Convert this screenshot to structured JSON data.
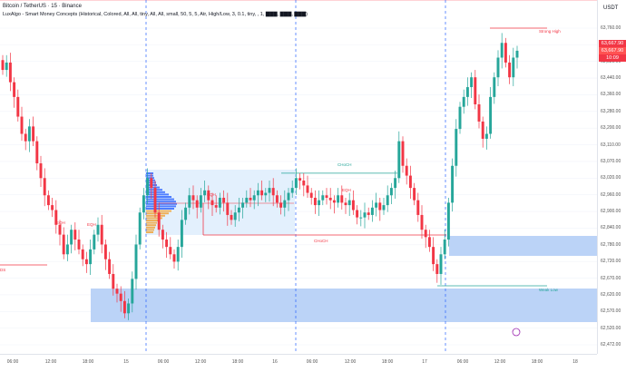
{
  "header": {
    "symbol_title": "Bitcoin / TetherUS · 15 · Binance",
    "indicator": "LuxAlgo - Smart Money Concepts (Historical, Colored, All, All, tiny, All, All, small, 50, 5, 5, Atr, High/Low, 3, 0.1, tiny, , 1, ▇▇▇, ▇▇▇, ▇▇▇)"
  },
  "price_axis": {
    "currency": "USDT",
    "labels": [
      "63,760.00",
      "63,600.00",
      "63,520.00",
      "63,440.00",
      "63,360.00",
      "63,280.00",
      "63,200.00",
      "63,110.00",
      "63,070.00",
      "63,020.00",
      "62,960.00",
      "62,900.00",
      "62,840.00",
      "62,780.00",
      "62,720.00",
      "62,670.00",
      "62,620.00",
      "62,570.00",
      "62,520.00",
      "62,472.00"
    ],
    "current_price": "63,667.90",
    "prev_price": "63,667.90",
    "countdown": "10:09",
    "current_color": "#f23645"
  },
  "time_axis": {
    "labels": [
      "06:00",
      "12:00",
      "18:00",
      "15",
      "06:00",
      "12:00",
      "18:00",
      "16",
      "06:00",
      "12:00",
      "18:00",
      "17",
      "06:00",
      "12:00",
      "18:00",
      "18"
    ]
  },
  "annotations": {
    "choch_up": "CHoCH",
    "choch_down": "CHoCH",
    "strong_high": "Strong High",
    "weak_low": "Weak Low",
    "eqh_small": [
      "EQH",
      "EQH",
      "EQH",
      "EQH"
    ],
    "ds_left": "DS"
  },
  "colors": {
    "up": "#26a69a",
    "down": "#f23645",
    "demand_zone": "#bbd3f7",
    "volume_profile": "#2962ff",
    "separator": "#2962ff",
    "choch_up_line": "#26a69a",
    "choch_down_line": "#f23645"
  },
  "chart_data": {
    "type": "candlestick",
    "price_range": [
      62472,
      63800
    ],
    "key_levels": {
      "strong_high": 63760,
      "weak_low": 62710,
      "choch_up": 63170,
      "choch_down": 62905
    },
    "closes": [
      63590,
      63620,
      63540,
      63480,
      63400,
      63330,
      63300,
      63360,
      63300,
      63210,
      63150,
      63080,
      63040,
      63020,
      62960,
      62920,
      62840,
      62880,
      62940,
      62900,
      62860,
      62820,
      62800,
      62860,
      62920,
      62960,
      62880,
      62820,
      62760,
      62700,
      62680,
      62650,
      62600,
      62640,
      62740,
      62880,
      63010,
      63080,
      63150,
      63110,
      63010,
      62940,
      62900,
      62870,
      62840,
      62810,
      62870,
      62980,
      63030,
      63080,
      63060,
      63030,
      63080,
      63100,
      63060,
      63040,
      63030,
      63070,
      63050,
      63000,
      62980,
      63010,
      63030,
      63050,
      63070,
      63060,
      63080,
      63100,
      63080,
      63090,
      63110,
      63080,
      63050,
      63030,
      63060,
      63090,
      63110,
      63150,
      63140,
      63120,
      63090,
      63070,
      63040,
      63060,
      63080,
      63070,
      63060,
      63050,
      63080,
      63050,
      63040,
      63060,
      63020,
      62990,
      62990,
      63010,
      63000,
      63030,
      63050,
      63020,
      63040,
      63080,
      63110,
      63150,
      63300,
      63200,
      63160,
      63110,
      63060,
      63000,
      62940,
      62910,
      62870,
      62800,
      62760,
      62840,
      62900,
      63050,
      63200,
      63350,
      63440,
      63480,
      63520,
      63560,
      63450,
      63380,
      63310,
      63330,
      63480,
      63560,
      63640,
      63700,
      63620,
      63560,
      63640,
      63668
    ]
  }
}
